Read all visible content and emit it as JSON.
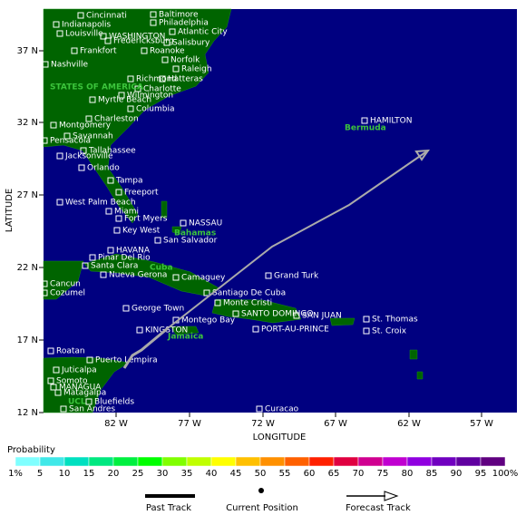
{
  "map": {
    "places": [
      "Cincinnati",
      "Baltimore",
      "Philadelphia",
      "Indianapolis",
      "Atlantic City",
      "Louisville",
      "WASHINGTON",
      "Fredericksburg",
      "Salisbury",
      "Frankfort",
      "Roanoke",
      "Norfolk",
      "Nashville",
      "Raleigh",
      "Richmond",
      "Hatteras",
      "Charlotte",
      "Wilmington",
      "Myrtle Beach",
      "Columbia",
      "Charleston",
      "Montgomery",
      "Savannah",
      "Pensacola",
      "Tallahassee",
      "Jacksonville",
      "Orlando",
      "Tampa",
      "Freeport",
      "West Palm Beach",
      "Miami",
      "Fort Myers",
      "NASSAU",
      "Key West",
      "San Salvador",
      "HAVANA",
      "Pinar Del Rio",
      "Santa Clara",
      "Nueva Gerona",
      "Camaguey",
      "Grand Turk",
      "Cancun",
      "Cozumel",
      "Santiago De Cuba",
      "Monte Cristi",
      "George Town",
      "SANTO DOMINGO",
      "SAN JUAN",
      "St. Thomas",
      "Montego Bay",
      "KINGSTON",
      "PORT-AU-PRINCE",
      "St. Croix",
      "Roatan",
      "Puerto Lempira",
      "Juticalpa",
      "Somoto",
      "MANAGUA",
      "Matagalpa",
      "Bluefields",
      "San Andres",
      "Curacao",
      "HAMILTON"
    ],
    "regions": [
      "STATES OF AMERICA",
      "Bahamas",
      "Cuba",
      "Jamaica",
      "Bermuda",
      "UCL"
    ]
  },
  "x_axis": {
    "title": "LONGITUDE",
    "ticks": [
      "82 W",
      "77 W",
      "72 W",
      "67 W",
      "62 W",
      "57 W"
    ]
  },
  "y_axis": {
    "title": "LATITUDE",
    "ticks": [
      "37 N",
      "32 N",
      "27 N",
      "22 N",
      "17 N",
      "12 N"
    ]
  },
  "probability": {
    "title": "Probability",
    "labels": [
      "1%",
      "5",
      "10",
      "15",
      "20",
      "25",
      "30",
      "35",
      "40",
      "45",
      "50",
      "55",
      "60",
      "65",
      "70",
      "75",
      "80",
      "85",
      "90",
      "95",
      "100%"
    ]
  },
  "track_legend": [
    "Past Track",
    "Current Position",
    "Forecast Track"
  ]
}
